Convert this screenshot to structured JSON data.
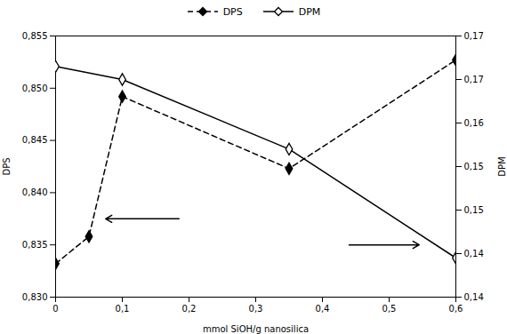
{
  "chart_data": {
    "type": "line",
    "xlabel": "mmol SiOH/g nanosilica",
    "ylabel": "DPS",
    "y2label": "DPM",
    "xlim": [
      0,
      0.6
    ],
    "xticks": [
      0,
      {
        "value": 0.1,
        "label": "0,1"
      },
      {
        "value": 0.2,
        "label": "0,2"
      },
      {
        "value": 0.3,
        "label": "0,3"
      },
      {
        "value": 0.4,
        "label": "0,4"
      },
      {
        "value": 0.5,
        "label": "0,5"
      },
      {
        "value": 0.6,
        "label": "0,6"
      }
    ],
    "ylim": [
      0.83,
      0.855
    ],
    "yticks": [
      {
        "value": 0.83,
        "label": "0,830"
      },
      {
        "value": 0.835,
        "label": "0,835"
      },
      {
        "value": 0.84,
        "label": "0,840"
      },
      {
        "value": 0.845,
        "label": "0,845"
      },
      {
        "value": 0.85,
        "label": "0,850"
      },
      {
        "value": 0.855,
        "label": "0,855"
      }
    ],
    "y2lim": [
      0.14,
      0.17
    ],
    "y2ticks": [
      {
        "value": 0.14,
        "label": "0,14"
      },
      {
        "value": 0.145,
        "label": "0,14"
      },
      {
        "value": 0.15,
        "label": "0,15"
      },
      {
        "value": 0.155,
        "label": "0,15"
      },
      {
        "value": 0.16,
        "label": "0,16"
      },
      {
        "value": 0.165,
        "label": "0,17"
      },
      {
        "value": 0.17,
        "label": "0,17"
      }
    ],
    "series": [
      {
        "name": "DPS",
        "x": [
          0,
          0.05,
          0.1,
          0.35,
          0.6
        ],
        "values": [
          0.8332,
          0.8358,
          0.8492,
          0.8423,
          0.8527
        ],
        "color": "#000000",
        "line_style": "dashed",
        "marker": "diamond"
      },
      {
        "name": "DPM",
        "axis": "y2",
        "x": [
          0,
          0.1,
          0.35,
          0.6
        ],
        "values": [
          0.1665,
          0.165,
          0.157,
          0.1445
        ],
        "color": "#000000",
        "line_style": "solid",
        "marker": "diamond_open"
      }
    ],
    "annotations": [
      {
        "x": 0.075,
        "y": 0.8375,
        "x_from": 0.185,
        "y_from": 0.8375
      },
      {
        "x": 0.545,
        "y": 0.835,
        "x_from": 0.44,
        "y_from": 0.835
      }
    ],
    "legend": "upper center",
    "grid": false
  }
}
